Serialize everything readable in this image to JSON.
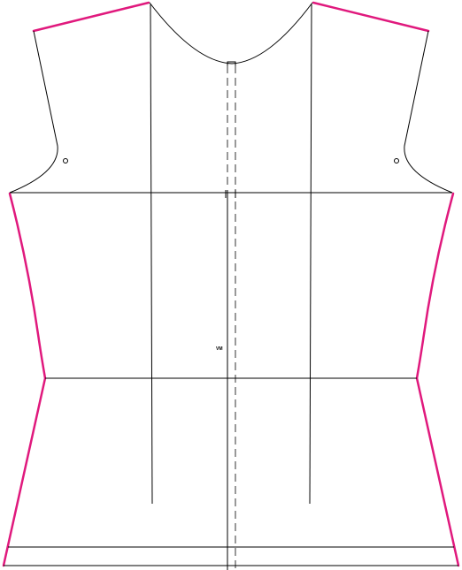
{
  "pattern": {
    "center_front_label": "VM",
    "colors": {
      "seam_allowance": "#e0197d",
      "construction_line": "#000000",
      "background": "#ffffff"
    }
  }
}
